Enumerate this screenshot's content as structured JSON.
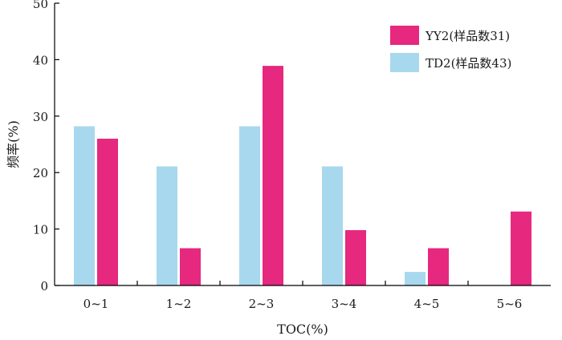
{
  "chart_data": {
    "type": "bar",
    "title": "",
    "xlabel": "TOC(%)",
    "ylabel": "频率(%)",
    "ylim": [
      0,
      50
    ],
    "yticks": [
      0,
      10,
      20,
      30,
      40,
      50
    ],
    "categories": [
      "0~1",
      "1~2",
      "2~3",
      "3~4",
      "4~5",
      "5~6"
    ],
    "series": [
      {
        "name": "TD2(样品数43)",
        "color": "#a8d8ee",
        "values": [
          28.2,
          21.1,
          28.2,
          21.1,
          2.4,
          0
        ]
      },
      {
        "name": "YY2(样品数31)",
        "color": "#e6287f",
        "values": [
          26.0,
          6.6,
          38.9,
          9.8,
          6.6,
          13.1
        ]
      }
    ],
    "legend": {
      "placement": "top-right",
      "entries": [
        {
          "label": "YY2(样品数31)",
          "color": "#e6287f"
        },
        {
          "label": "TD2(样品数43)",
          "color": "#a8d8ee"
        }
      ]
    },
    "grid": false
  }
}
